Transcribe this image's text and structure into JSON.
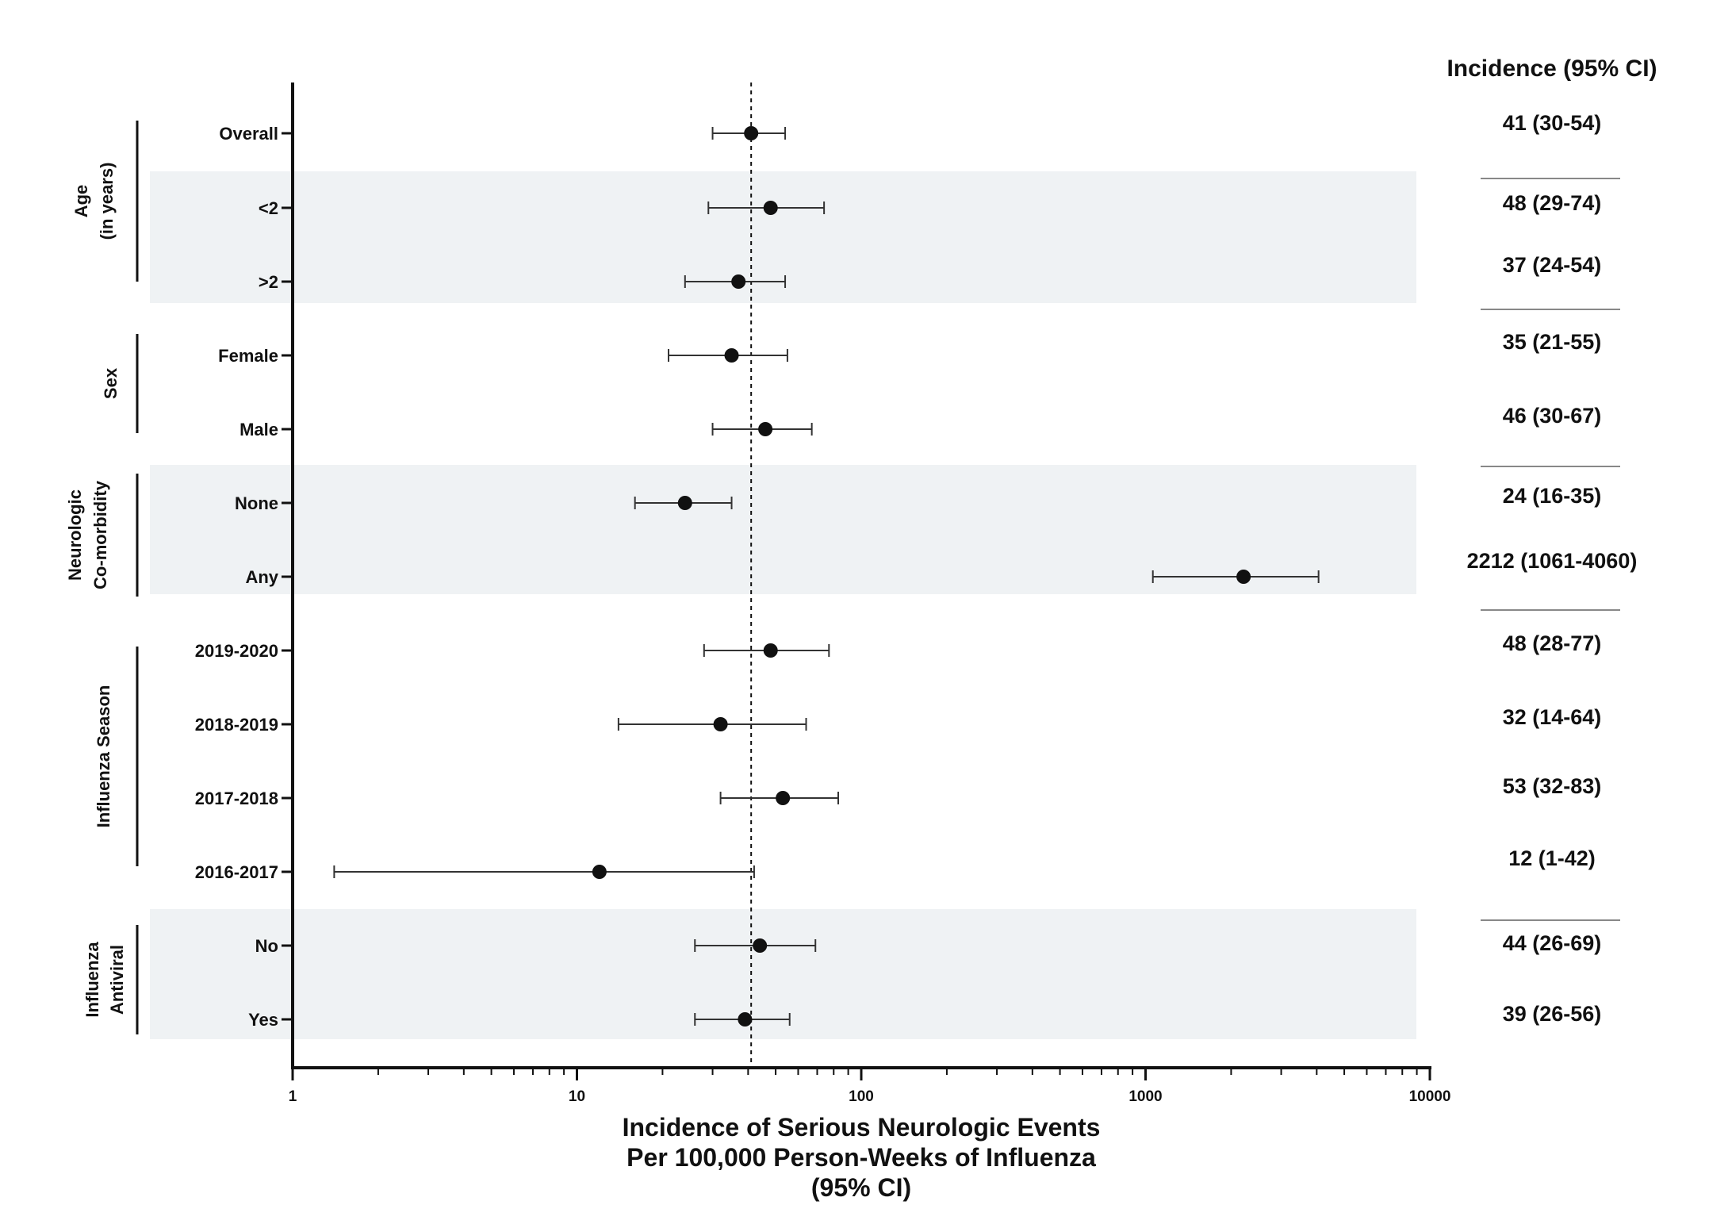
{
  "chart_data": {
    "type": "forest",
    "x_scale": "log10",
    "xlim": [
      1,
      10000
    ],
    "x_ticks": [
      "1",
      "10",
      "100",
      "1000",
      "10000"
    ],
    "x_tick_values": [
      1,
      10,
      100,
      1000,
      10000
    ],
    "reference_line": 41,
    "reference_line_style": "dotted",
    "xlabel_lines": [
      "Incidence of Serious Neurologic Events",
      "Per 100,000 Person-Weeks of Influenza",
      "(95% CI)"
    ],
    "incidence_header": "Incidence (95% CI)",
    "rows": [
      {
        "label": "Overall",
        "est": 41,
        "lo": 30,
        "hi": 54,
        "text": "41 (30-54)"
      },
      {
        "label": "<2",
        "est": 48,
        "lo": 29,
        "hi": 74,
        "text": "48 (29-74)"
      },
      {
        "label": ">2",
        "est": 37,
        "lo": 24,
        "hi": 54,
        "text": "37  (24-54)"
      },
      {
        "label": "Female",
        "est": 35,
        "lo": 21,
        "hi": 55,
        "text": "35  (21-55)"
      },
      {
        "label": "Male",
        "est": 46,
        "lo": 30,
        "hi": 67,
        "text": "46  (30-67)"
      },
      {
        "label": "None",
        "est": 24,
        "lo": 16,
        "hi": 35,
        "text": "24  (16-35)"
      },
      {
        "label": "Any",
        "est": 2212,
        "lo": 1061,
        "hi": 4060,
        "text": "2212 (1061-4060)"
      },
      {
        "label": "2019-2020",
        "est": 48,
        "lo": 28,
        "hi": 77,
        "text": "48 (28-77)"
      },
      {
        "label": "2018-2019",
        "est": 32,
        "lo": 14,
        "hi": 64,
        "text": "32 (14-64)"
      },
      {
        "label": "2017-2018",
        "est": 53,
        "lo": 32,
        "hi": 83,
        "text": "53 (32-83)"
      },
      {
        "label": "2016-2017",
        "est": 12,
        "lo": 1.4,
        "hi": 42,
        "text": "12 (1-42)"
      },
      {
        "label": "No",
        "est": 44,
        "lo": 26,
        "hi": 69,
        "text": "44 (26-69)"
      },
      {
        "label": "Yes",
        "est": 39,
        "lo": 26,
        "hi": 56,
        "text": "39 (26-56)"
      }
    ],
    "groups": [
      {
        "lines": [
          "Age",
          "(in years)"
        ]
      },
      {
        "lines": [
          "Sex"
        ]
      },
      {
        "lines": [
          "Neurologic",
          "Co-morbidity"
        ]
      },
      {
        "lines": [
          "Influenza Season"
        ]
      },
      {
        "lines": [
          "Influenza",
          "Antiviral"
        ]
      }
    ],
    "colors": {
      "ink": "#111111",
      "band": "#eff2f4",
      "divider": "#888888"
    }
  }
}
